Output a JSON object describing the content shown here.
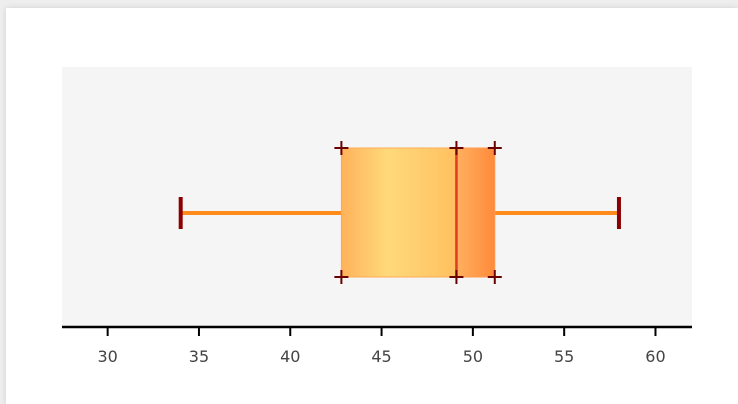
{
  "chart_data": {
    "type": "boxplot",
    "title": "",
    "xlabel": "",
    "ylabel": "",
    "xlim": [
      27.5,
      62
    ],
    "ticks": [
      30,
      35,
      40,
      45,
      50,
      55,
      60
    ],
    "tick_labels": [
      "30",
      "35",
      "40",
      "45",
      "50",
      "55",
      "60"
    ],
    "grid": false,
    "series": [
      {
        "min": 34,
        "q1": 42.8,
        "median": 49.1,
        "q3": 51.2,
        "max": 58
      }
    ]
  },
  "colors": {
    "background": "#f5f5f5",
    "whisker": "#ff8c1a",
    "whisker_cap": "#8b0000",
    "median": "#e03c1e",
    "box_light": "#ffd97a",
    "box_dark": "#ff9040",
    "marker": "#6b0000",
    "axis": "#000000"
  }
}
